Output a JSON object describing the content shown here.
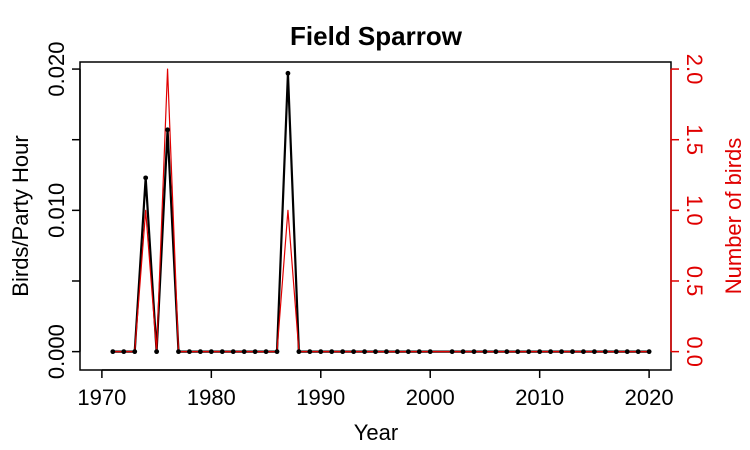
{
  "chart_data": {
    "type": "line",
    "title": "Field Sparrow",
    "xlabel": "Year",
    "ylabel": "Birds/Party Hour",
    "y2label": "Number of birds",
    "xlim": [
      1968,
      2022
    ],
    "ylim": [
      -0.0013,
      0.0205
    ],
    "y2lim": [
      -0.13,
      2.05
    ],
    "x_ticks": [
      1970,
      1980,
      1990,
      2000,
      2010,
      2020
    ],
    "y_ticks": [
      0.0,
      0.005,
      0.01,
      0.015,
      0.02
    ],
    "y_tick_labels": [
      "0.000",
      "",
      "0.010",
      "",
      "0.020"
    ],
    "y2_ticks": [
      0.0,
      0.5,
      1.0,
      1.5,
      2.0
    ],
    "y2_tick_labels": [
      "0.0",
      "0.5",
      "1.0",
      "1.5",
      "2.0"
    ],
    "grid": false,
    "colors": {
      "primary": "#000000",
      "secondary": "#e00000"
    },
    "series": [
      {
        "axis": "left",
        "style": "line+points",
        "x": [
          1971,
          1972,
          1973,
          1974,
          1975,
          1976,
          1977,
          1978,
          1979,
          1980,
          1981,
          1982,
          1983,
          1984,
          1985,
          1986,
          1987,
          1988,
          1989,
          1990,
          1991,
          1992,
          1993,
          1994,
          1995,
          1996,
          1997,
          1998,
          1999,
          2000,
          2002,
          2003,
          2004,
          2005,
          2006,
          2007,
          2008,
          2009,
          2010,
          2011,
          2012,
          2013,
          2014,
          2015,
          2016,
          2017,
          2018,
          2019,
          2020
        ],
        "values": [
          0,
          0,
          0,
          0.0123,
          0,
          0.0157,
          0,
          0,
          0,
          0,
          0,
          0,
          0,
          0,
          0,
          0,
          0.0197,
          0,
          0,
          0,
          0,
          0,
          0,
          0,
          0,
          0,
          0,
          0,
          0,
          0,
          0,
          0,
          0,
          0,
          0,
          0,
          0,
          0,
          0,
          0,
          0,
          0,
          0,
          0,
          0,
          0,
          0,
          0,
          0
        ]
      },
      {
        "axis": "right",
        "style": "line",
        "x": [
          1971,
          1972,
          1973,
          1974,
          1975,
          1976,
          1977,
          1978,
          1979,
          1980,
          1981,
          1982,
          1983,
          1984,
          1985,
          1986,
          1987,
          1988,
          1989,
          1990,
          1991,
          1992,
          1993,
          1994,
          1995,
          1996,
          1997,
          1998,
          1999,
          2000,
          2002,
          2003,
          2004,
          2005,
          2006,
          2007,
          2008,
          2009,
          2010,
          2011,
          2012,
          2013,
          2014,
          2015,
          2016,
          2017,
          2018,
          2019,
          2020
        ],
        "values": [
          0,
          0,
          0,
          1,
          0,
          2,
          0,
          0,
          0,
          0,
          0,
          0,
          0,
          0,
          0,
          0,
          1,
          0,
          0,
          0,
          0,
          0,
          0,
          0,
          0,
          0,
          0,
          0,
          0,
          0,
          0,
          0,
          0,
          0,
          0,
          0,
          0,
          0,
          0,
          0,
          0,
          0,
          0,
          0,
          0,
          0,
          0,
          0,
          0
        ]
      }
    ]
  }
}
